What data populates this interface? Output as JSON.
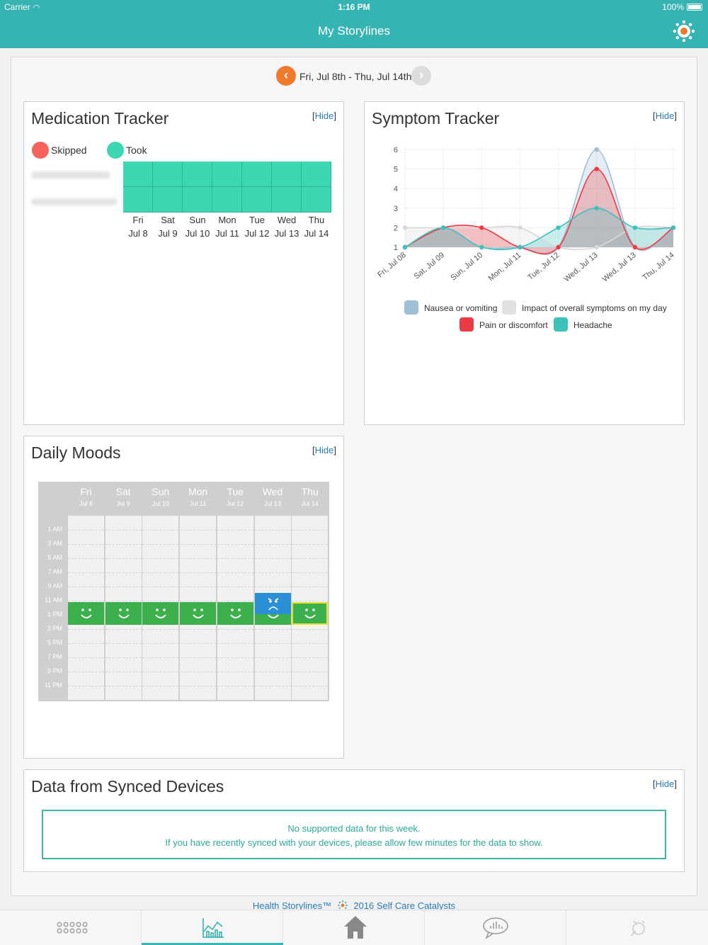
{
  "status": {
    "carrier": "Carrier",
    "time": "1:16 PM",
    "battery": "100%"
  },
  "nav": {
    "title": "My Storylines"
  },
  "week": {
    "range": "Fri, Jul 8th - Thu, Jul 14th",
    "prev_icon": "chevron-left-icon",
    "next_icon": "chevron-right-icon"
  },
  "hide_label": "Hide",
  "medication": {
    "title": "Medication Tracker",
    "legend": [
      {
        "label": "Skipped",
        "color": "#f4645c"
      },
      {
        "label": "Took",
        "color": "#3dd8b3"
      }
    ],
    "days": [
      {
        "d": "Fri",
        "date": "Jul 8"
      },
      {
        "d": "Sat",
        "date": "Jul 9"
      },
      {
        "d": "Sun",
        "date": "Jul 10"
      },
      {
        "d": "Mon",
        "date": "Jul 11"
      },
      {
        "d": "Tue",
        "date": "Jul 12"
      },
      {
        "d": "Wed",
        "date": "Jul 13"
      },
      {
        "d": "Thu",
        "date": "Jul 14"
      }
    ],
    "status_grid": [
      [
        "took",
        "took",
        "took",
        "took",
        "took",
        "took",
        "took"
      ],
      [
        "took",
        "took",
        "took",
        "took",
        "took",
        "took",
        "took"
      ]
    ]
  },
  "symptom": {
    "title": "Symptom Tracker",
    "legend": [
      {
        "label": "Nausea or vomiting",
        "color": "#9fc0d4"
      },
      {
        "label": "Impact of overall symptoms on my day",
        "color": "#e1e1e1"
      },
      {
        "label": "Pain or discomfort",
        "color": "#ee3a45"
      },
      {
        "label": "Headache",
        "color": "#3cc1bd"
      }
    ]
  },
  "chart_data": {
    "type": "line",
    "x": [
      "Fri, Jul 08",
      "Sat, Jul 09",
      "Sun, Jul 10",
      "Mon, Jul 11",
      "Tue, Jul 12",
      "Wed, Jul 13",
      "Wed, Jul 13",
      "Thu, Jul 14"
    ],
    "ylim": [
      1,
      6
    ],
    "yticks": [
      1,
      2,
      3,
      4,
      5,
      6
    ],
    "series": [
      {
        "name": "Nausea or vomiting",
        "values": [
          1,
          2,
          1,
          1,
          1,
          6,
          1,
          2
        ],
        "color": "#9fc0d4"
      },
      {
        "name": "Impact of overall symptoms on my day",
        "values": [
          2,
          2,
          2,
          2,
          1,
          1,
          2,
          2
        ],
        "color": "#d8d8d8"
      },
      {
        "name": "Pain or discomfort",
        "values": [
          1,
          2,
          2,
          1,
          1,
          5,
          1,
          2
        ],
        "color": "#ee3a45"
      },
      {
        "name": "Headache",
        "values": [
          1,
          2,
          1,
          1,
          2,
          3,
          2,
          2
        ],
        "color": "#3cc1bd"
      }
    ],
    "title": "",
    "xlabel": "",
    "ylabel": ""
  },
  "moods": {
    "title": "Daily Moods",
    "days": [
      {
        "d": "Fri",
        "date": "Jul 8"
      },
      {
        "d": "Sat",
        "date": "Jul 9"
      },
      {
        "d": "Sun",
        "date": "Jul 10"
      },
      {
        "d": "Mon",
        "date": "Jul 11"
      },
      {
        "d": "Tue",
        "date": "Jul 12"
      },
      {
        "d": "Wed",
        "date": "Jul 13"
      },
      {
        "d": "Thu",
        "date": "Jul 14"
      }
    ],
    "hours": [
      "1 AM",
      "3 AM",
      "5 AM",
      "7 AM",
      "9 AM",
      "11 AM",
      "1 PM",
      "3 PM",
      "5 PM",
      "7 PM",
      "9 PM",
      "11 PM"
    ],
    "entries": [
      {
        "day": 0,
        "mood": "happy",
        "time": "1 PM"
      },
      {
        "day": 1,
        "mood": "happy",
        "time": "1 PM"
      },
      {
        "day": 2,
        "mood": "happy",
        "time": "1 PM"
      },
      {
        "day": 3,
        "mood": "happy",
        "time": "1 PM"
      },
      {
        "day": 4,
        "mood": "happy",
        "time": "1 PM"
      },
      {
        "day": 5,
        "mood": "sad",
        "time": "11 AM"
      },
      {
        "day": 5,
        "mood": "happy",
        "time": "1 PM"
      },
      {
        "day": 6,
        "mood": "happy",
        "time": "1 PM",
        "selected": true
      }
    ]
  },
  "synced": {
    "title": "Data from Synced Devices",
    "line1": "No supported data for this week.",
    "line2": "If you have recently synced with your devices, please allow few minutes for the data to show."
  },
  "footer": {
    "brand_left": "Health Storylines™",
    "brand_right": "2016 Self Care Catalysts"
  },
  "tabs": [
    {
      "name": "tab-dashboard",
      "icon": "grid-dots-icon",
      "active": false
    },
    {
      "name": "tab-charts",
      "icon": "chart-icon",
      "active": true
    },
    {
      "name": "tab-home",
      "icon": "home-icon",
      "active": false
    },
    {
      "name": "tab-messages",
      "icon": "speech-bubble-chart-icon",
      "active": false
    },
    {
      "name": "tab-tools",
      "icon": "tools-icon",
      "active": false
    }
  ]
}
